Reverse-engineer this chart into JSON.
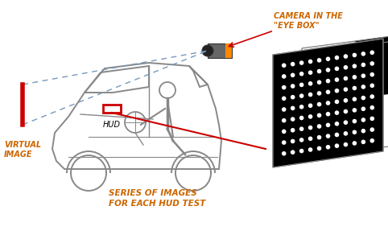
{
  "bg_color": "#ffffff",
  "text_color_orange": "#CC6600",
  "line_color_red": "#CC0000",
  "line_color_blue": "#7799BB",
  "car_color": "#888888",
  "label_camera": "CAMERA IN THE\n\"EYE BOX\"",
  "label_virtual": "VIRTUAL\nIMAGE",
  "label_hud": "HUD",
  "label_series": "SERIES OF IMAGES\nFOR EACH HUD TEST",
  "fig_width": 4.82,
  "fig_height": 2.87,
  "dpi": 100
}
